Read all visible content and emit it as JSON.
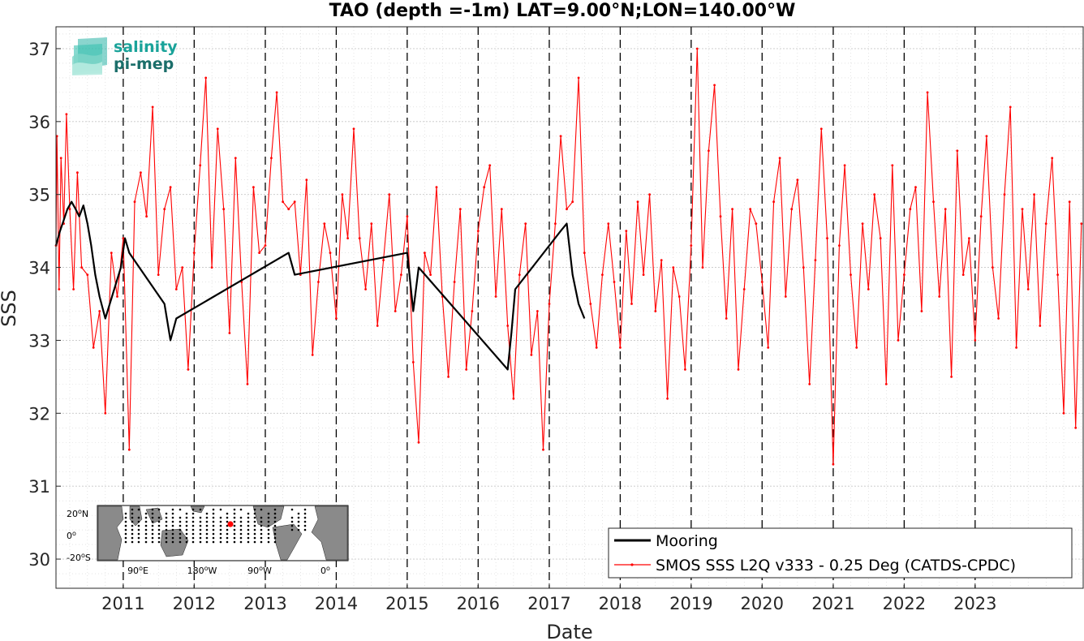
{
  "chart_data": {
    "type": "line",
    "title": "TAO (depth =-1m) LAT=9.00°N;LON=140.00°W",
    "xlabel": "Date",
    "ylabel": "SSS",
    "xlim": [
      "2010-01-20",
      "2024-07-10"
    ],
    "ylim": [
      29.6,
      37.3
    ],
    "yticks": [
      30,
      31,
      32,
      33,
      34,
      35,
      36,
      37
    ],
    "xticks": [
      "2011",
      "2012",
      "2013",
      "2014",
      "2015",
      "2016",
      "2017",
      "2018",
      "2019",
      "2020",
      "2021",
      "2022",
      "2023"
    ],
    "vlines_dashed": [
      "2011-01-01",
      "2012-01-01",
      "2013-01-01",
      "2014-01-01",
      "2015-01-01",
      "2016-01-01",
      "2017-01-01",
      "2018-01-01",
      "2019-01-01",
      "2020-01-01",
      "2021-01-01",
      "2022-01-01",
      "2023-01-01"
    ],
    "grid": true,
    "legend_position": "bottom-right",
    "series": [
      {
        "name": "Mooring",
        "color": "#000000",
        "x": [
          "2010-01-20",
          "2010-02-10",
          "2010-03-01",
          "2010-03-20",
          "2010-04-10",
          "2010-05-01",
          "2010-05-20",
          "2010-06-10",
          "2010-07-01",
          "2010-07-20",
          "2010-08-10",
          "2010-09-01",
          "2010-10-01",
          "2010-12-20",
          "2011-01-10",
          "2011-02-01",
          "2011-08-01",
          "2011-09-01",
          "2011-10-01",
          "2013-05-01",
          "2013-06-01",
          "2015-01-01",
          "2015-02-01",
          "2015-03-01",
          "2016-06-01",
          "2016-06-20",
          "2016-07-10",
          "2017-03-01",
          "2017-04-01",
          "2017-05-01",
          "2017-06-01",
          "2017-07-01"
        ],
        "y": [
          34.3,
          34.5,
          34.65,
          34.8,
          34.9,
          34.8,
          34.7,
          34.85,
          34.6,
          34.3,
          33.9,
          33.6,
          33.3,
          34.0,
          34.4,
          34.2,
          33.5,
          33.0,
          33.3,
          34.2,
          33.9,
          34.2,
          33.4,
          34.0,
          32.6,
          33.1,
          33.7,
          34.5,
          34.6,
          33.9,
          33.5,
          33.3
        ]
      },
      {
        "name": "SMOS SSS L2Q v333 - 0.25 Deg (CATDS-CPDC)",
        "color": "#ff0000",
        "x": [
          "2010-01-20",
          "2010-01-25",
          "2010-02-05",
          "2010-02-15",
          "2010-03-01",
          "2010-03-15",
          "2010-04-01",
          "2010-04-20",
          "2010-05-10",
          "2010-06-01",
          "2010-07-01",
          "2010-08-01",
          "2010-09-01",
          "2010-10-01",
          "2010-11-01",
          "2010-12-01",
          "2011-01-01",
          "2011-02-01",
          "2011-03-01",
          "2011-04-01",
          "2011-05-01",
          "2011-06-01",
          "2011-07-01",
          "2011-08-01",
          "2011-09-01",
          "2011-10-01",
          "2011-11-01",
          "2011-12-01",
          "2012-01-01",
          "2012-02-01",
          "2012-03-01",
          "2012-04-01",
          "2012-05-01",
          "2012-06-01",
          "2012-07-01",
          "2012-08-01",
          "2012-09-01",
          "2012-10-01",
          "2012-11-01",
          "2012-12-01",
          "2013-01-01",
          "2013-02-01",
          "2013-03-01",
          "2013-04-01",
          "2013-05-01",
          "2013-06-01",
          "2013-07-01",
          "2013-08-01",
          "2013-09-01",
          "2013-10-01",
          "2013-11-01",
          "2013-12-01",
          "2014-01-01",
          "2014-02-01",
          "2014-03-01",
          "2014-04-01",
          "2014-05-01",
          "2014-06-01",
          "2014-07-01",
          "2014-08-01",
          "2014-09-01",
          "2014-10-01",
          "2014-11-01",
          "2014-12-01",
          "2015-01-01",
          "2015-02-01",
          "2015-03-01",
          "2015-04-01",
          "2015-05-01",
          "2015-06-01",
          "2015-07-01",
          "2015-08-01",
          "2015-09-01",
          "2015-10-01",
          "2015-11-01",
          "2015-12-01",
          "2016-01-01",
          "2016-02-01",
          "2016-03-01",
          "2016-04-01",
          "2016-05-01",
          "2016-06-01",
          "2016-07-01",
          "2016-08-01",
          "2016-09-01",
          "2016-10-01",
          "2016-11-01",
          "2016-12-01",
          "2017-01-01",
          "2017-02-01",
          "2017-03-01",
          "2017-04-01",
          "2017-05-01",
          "2017-06-01",
          "2017-07-01",
          "2017-08-01",
          "2017-09-01",
          "2017-10-01",
          "2017-11-01",
          "2017-12-01",
          "2018-01-01",
          "2018-02-01",
          "2018-03-01",
          "2018-04-01",
          "2018-05-01",
          "2018-06-01",
          "2018-07-01",
          "2018-08-01",
          "2018-09-01",
          "2018-10-01",
          "2018-11-01",
          "2018-12-01",
          "2019-01-01",
          "2019-02-01",
          "2019-03-01",
          "2019-04-01",
          "2019-05-01",
          "2019-06-01",
          "2019-07-01",
          "2019-08-01",
          "2019-09-01",
          "2019-10-01",
          "2019-11-01",
          "2019-12-01",
          "2020-01-01",
          "2020-02-01",
          "2020-03-01",
          "2020-04-01",
          "2020-05-01",
          "2020-06-01",
          "2020-07-01",
          "2020-08-01",
          "2020-09-01",
          "2020-10-01",
          "2020-11-01",
          "2020-12-01",
          "2021-01-01",
          "2021-02-01",
          "2021-03-01",
          "2021-04-01",
          "2021-05-01",
          "2021-06-01",
          "2021-07-01",
          "2021-08-01",
          "2021-09-01",
          "2021-10-01",
          "2021-11-01",
          "2021-12-01",
          "2022-01-01",
          "2022-02-01",
          "2022-03-01",
          "2022-04-01",
          "2022-05-01",
          "2022-06-01",
          "2022-07-01",
          "2022-08-01",
          "2022-09-01",
          "2022-10-01",
          "2022-11-01",
          "2022-12-01",
          "2023-01-01",
          "2023-02-01",
          "2023-03-01",
          "2023-04-01",
          "2023-05-01",
          "2023-06-01",
          "2023-07-01",
          "2023-08-01",
          "2023-09-01",
          "2023-10-01",
          "2023-11-01",
          "2023-12-01",
          "2024-01-01",
          "2024-02-01",
          "2024-03-01",
          "2024-04-01",
          "2024-05-01",
          "2024-06-01",
          "2024-07-01"
        ],
        "y": [
          34.3,
          35.8,
          33.7,
          35.5,
          34.6,
          36.1,
          34.8,
          33.7,
          35.3,
          34.0,
          33.9,
          32.9,
          33.4,
          32.0,
          34.2,
          33.6,
          34.4,
          31.5,
          34.9,
          35.3,
          34.7,
          36.2,
          33.9,
          34.8,
          35.1,
          33.7,
          34.0,
          32.6,
          34.2,
          35.4,
          36.6,
          34.0,
          35.9,
          34.8,
          33.1,
          35.5,
          33.8,
          32.4,
          35.1,
          34.2,
          34.3,
          35.5,
          36.4,
          34.9,
          34.8,
          34.9,
          33.9,
          35.2,
          32.8,
          33.8,
          34.6,
          34.2,
          33.3,
          35.0,
          34.4,
          35.9,
          34.4,
          33.7,
          34.6,
          33.2,
          34.1,
          35.0,
          33.4,
          33.9,
          34.7,
          32.7,
          31.6,
          34.2,
          33.9,
          35.1,
          33.6,
          32.5,
          33.8,
          34.8,
          32.6,
          33.4,
          34.5,
          35.1,
          35.4,
          33.6,
          34.8,
          33.2,
          32.2,
          33.9,
          34.6,
          32.8,
          33.4,
          31.5,
          33.5,
          34.6,
          35.8,
          34.8,
          34.9,
          36.6,
          34.2,
          33.5,
          32.9,
          33.9,
          34.6,
          33.8,
          32.9,
          34.5,
          33.5,
          34.9,
          33.9,
          35.0,
          33.4,
          34.1,
          32.2,
          34.0,
          33.6,
          32.6,
          34.3,
          37.0,
          34.0,
          35.6,
          36.5,
          34.7,
          33.3,
          34.8,
          32.6,
          33.7,
          34.8,
          34.6,
          33.8,
          32.9,
          34.9,
          35.5,
          33.6,
          34.8,
          35.2,
          34.0,
          32.4,
          34.1,
          35.9,
          34.4,
          31.3,
          34.3,
          35.4,
          33.9,
          32.9,
          34.6,
          33.7,
          35.0,
          34.4,
          32.4,
          35.4,
          33.0,
          33.9,
          34.8,
          35.1,
          33.4,
          36.4,
          34.9,
          33.6,
          34.8,
          32.5,
          35.6,
          33.9,
          34.4,
          33.0,
          34.7,
          35.8,
          34.0,
          33.3,
          35.0,
          36.2,
          32.9,
          34.8,
          33.7,
          35.0,
          33.2,
          34.6,
          35.5,
          33.9,
          32.0,
          34.9,
          31.8,
          34.6
        ]
      }
    ]
  },
  "logo": {
    "line1": "salinity",
    "line2": "pi-mep"
  },
  "inset_map": {
    "ylabels": [
      "20",
      "0",
      "20"
    ],
    "ylabel_suffix": [
      "N",
      "",
      "S"
    ],
    "xlabels": [
      "90",
      "180",
      "90",
      "0"
    ],
    "xlabel_suffix": [
      "E",
      "W",
      "W",
      ""
    ],
    "marker_color": "#ff0000"
  }
}
